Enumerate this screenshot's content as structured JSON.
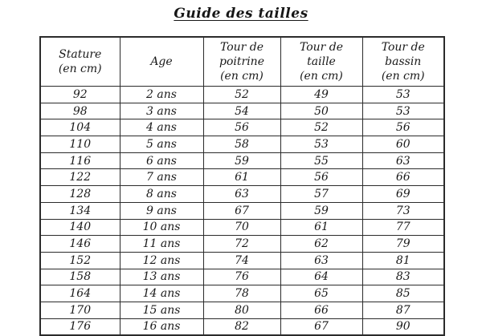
{
  "title": "Guide des tailles",
  "colors": {
    "background": "#ffffff",
    "border": "#2b2b2b",
    "text": "#1a1a1a"
  },
  "table": {
    "headers": [
      "Stature\n(en cm)",
      "Age",
      "Tour de\npoitrine\n(en cm)",
      "Tour de\ntaille\n(en cm)",
      "Tour de\nbassin\n(en cm)"
    ],
    "rows": [
      [
        "92",
        "2 ans",
        "52",
        "49",
        "53"
      ],
      [
        "98",
        "3 ans",
        "54",
        "50",
        "53"
      ],
      [
        "104",
        "4 ans",
        "56",
        "52",
        "56"
      ],
      [
        "110",
        "5 ans",
        "58",
        "53",
        "60"
      ],
      [
        "116",
        "6 ans",
        "59",
        "55",
        "63"
      ],
      [
        "122",
        "7 ans",
        "61",
        "56",
        "66"
      ],
      [
        "128",
        "8 ans",
        "63",
        "57",
        "69"
      ],
      [
        "134",
        "9 ans",
        "67",
        "59",
        "73"
      ],
      [
        "140",
        "10 ans",
        "70",
        "61",
        "77"
      ],
      [
        "146",
        "11 ans",
        "72",
        "62",
        "79"
      ],
      [
        "152",
        "12 ans",
        "74",
        "63",
        "81"
      ],
      [
        "158",
        "13 ans",
        "76",
        "64",
        "83"
      ],
      [
        "164",
        "14 ans",
        "78",
        "65",
        "85"
      ],
      [
        "170",
        "15 ans",
        "80",
        "66",
        "87"
      ],
      [
        "176",
        "16 ans",
        "82",
        "67",
        "90"
      ]
    ]
  }
}
